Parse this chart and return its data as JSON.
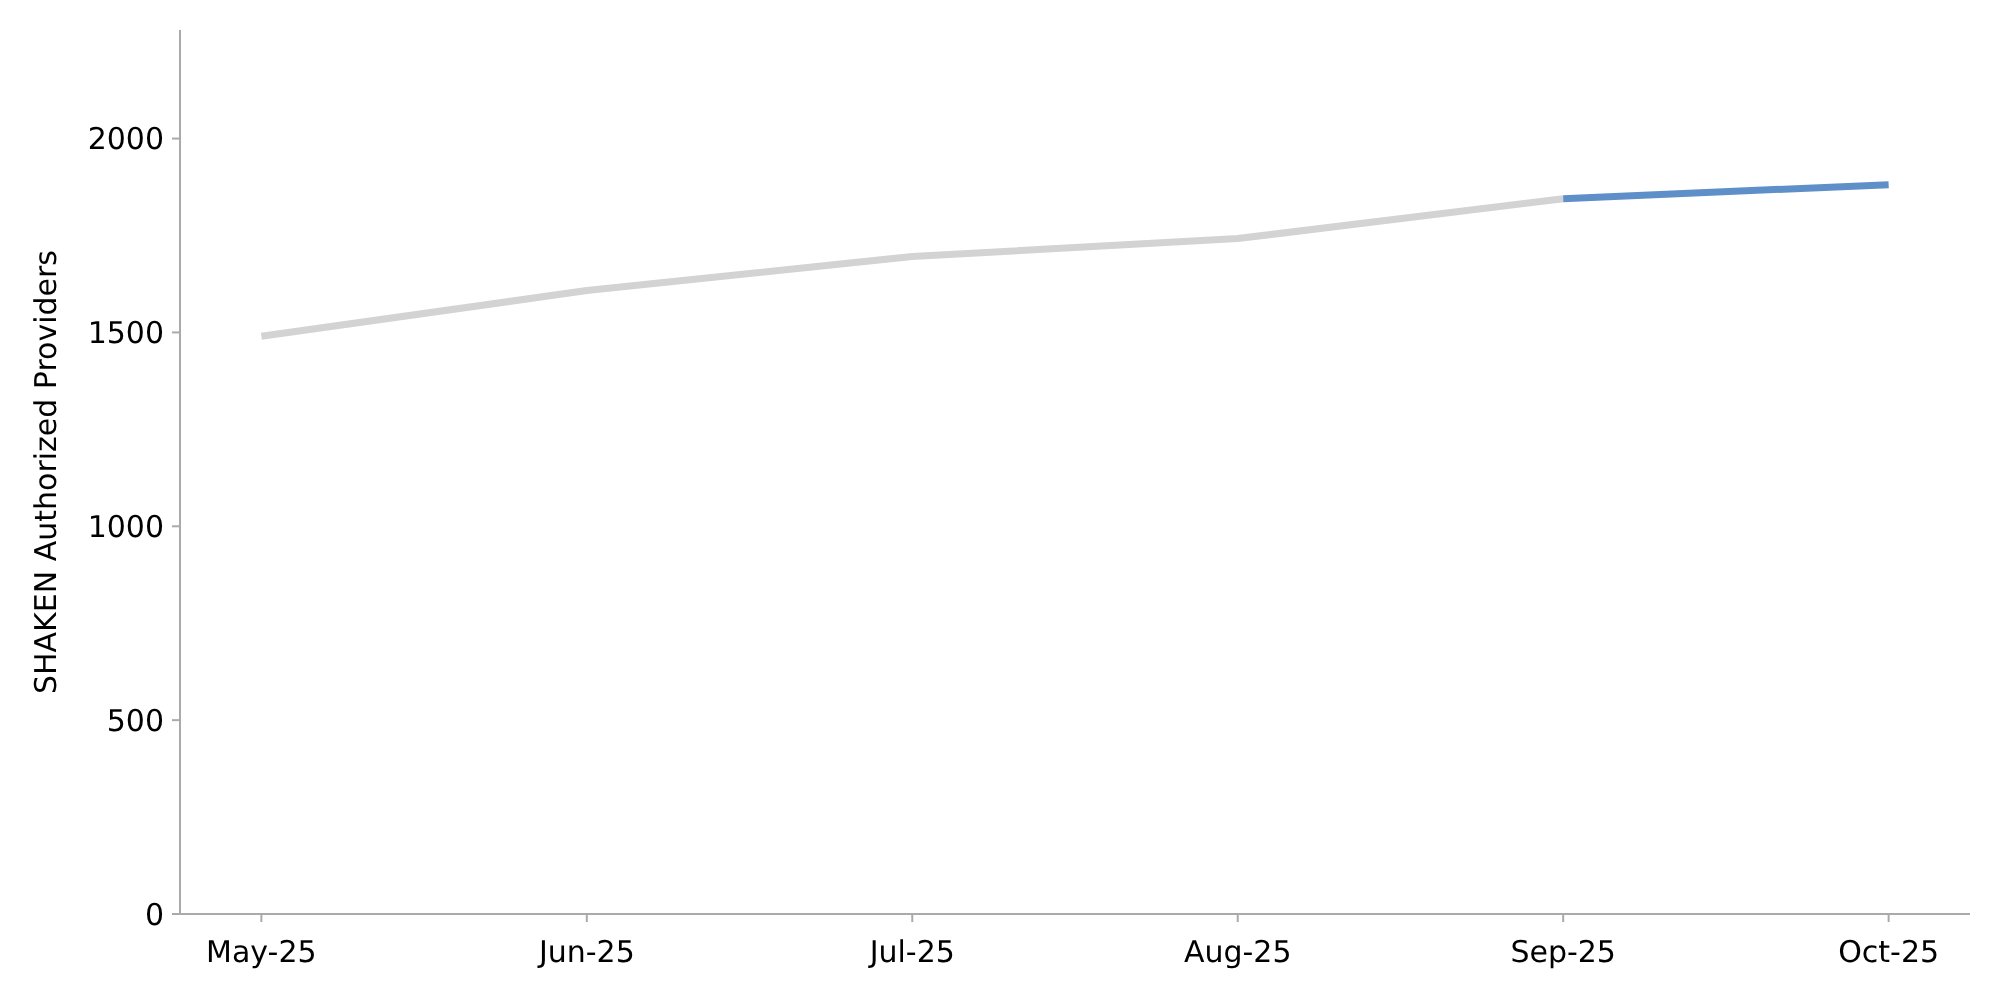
{
  "chart_data": {
    "type": "line",
    "ylabel": "SHAKEN Authorized Providers",
    "categories": [
      "May-25",
      "Jun-25",
      "Jul-25",
      "Aug-25",
      "Sep-25",
      "Oct-25"
    ],
    "series": [
      {
        "color": "#d3d3d3",
        "values": [
          1490,
          1608,
          1696,
          1742,
          1845,
          null
        ]
      },
      {
        "color": "#5f8fc9",
        "values": [
          null,
          null,
          null,
          null,
          1845,
          1881
        ]
      }
    ],
    "ylim": [
      0,
      2280
    ],
    "yticks": [
      0,
      500,
      1000,
      1500,
      2000
    ],
    "line_style": "solid"
  }
}
